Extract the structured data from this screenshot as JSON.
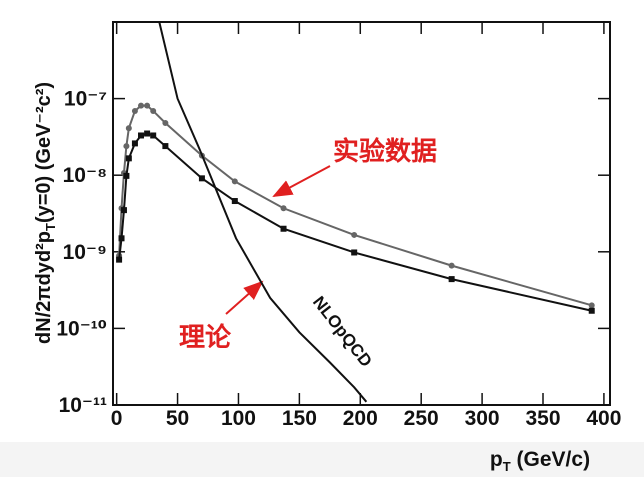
{
  "chart_data": {
    "type": "line",
    "x_label": {
      "text": "p",
      "sub": "T",
      "rest": " (GeV/c)"
    },
    "y_label": {
      "text": "dN/2πdyd²p",
      "sub": "T",
      "rest": "(y=0) (GeV⁻²c²)"
    },
    "log_y": true,
    "xlim": [
      -3,
      405
    ],
    "ylim": [
      1e-11,
      1e-06
    ],
    "xticks": [
      0,
      50,
      100,
      150,
      200,
      250,
      300,
      350,
      400
    ],
    "yticks": [
      {
        "value": 1e-11,
        "label": "10⁻¹¹"
      },
      {
        "value": 1e-10,
        "label": "10⁻¹⁰"
      },
      {
        "value": 1e-09,
        "label": "10⁻⁹"
      },
      {
        "value": 1e-08,
        "label": "10⁻⁸"
      },
      {
        "value": 1e-07,
        "label": "10⁻⁷"
      }
    ],
    "series": [
      {
        "color": "#666666",
        "marker": "circle",
        "x": [
          2,
          4,
          6,
          8,
          10,
          15,
          20,
          25,
          30,
          40,
          70,
          97,
          137,
          195,
          275,
          390
        ],
        "values": [
          8.9e-10,
          3.7e-09,
          1.07e-08,
          2.4e-08,
          4.1e-08,
          6.9e-08,
          8.1e-08,
          8.1e-08,
          6.9e-08,
          4.8e-08,
          1.8e-08,
          8.3e-09,
          3.7e-09,
          1.66e-09,
          6.6e-10,
          2e-10
        ]
      },
      {
        "color": "#111111",
        "marker": "square",
        "x": [
          2,
          4,
          6,
          8,
          10,
          15,
          20,
          25,
          30,
          40,
          70,
          97,
          137,
          195,
          275,
          390
        ],
        "values": [
          7.9e-10,
          1.5e-09,
          3.5e-09,
          9.8e-09,
          1.66e-08,
          2.6e-08,
          3.3e-08,
          3.5e-08,
          3.3e-08,
          2.4e-08,
          9.1e-09,
          4.6e-09,
          2e-09,
          9.8e-10,
          4.4e-10,
          1.7e-10
        ]
      },
      {
        "name": "NLOpQCD",
        "color": "#111111",
        "marker": "none",
        "x": [
          35,
          50,
          68,
          98,
          126,
          150,
          175,
          195,
          205
        ],
        "values": [
          1e-06,
          1e-07,
          2.2e-08,
          1.5e-09,
          2.5e-10,
          8.9e-11,
          3.6e-11,
          1.7e-11,
          1.1e-11
        ]
      }
    ],
    "annotations": {
      "data": "实验数据",
      "theory": "理论"
    }
  }
}
